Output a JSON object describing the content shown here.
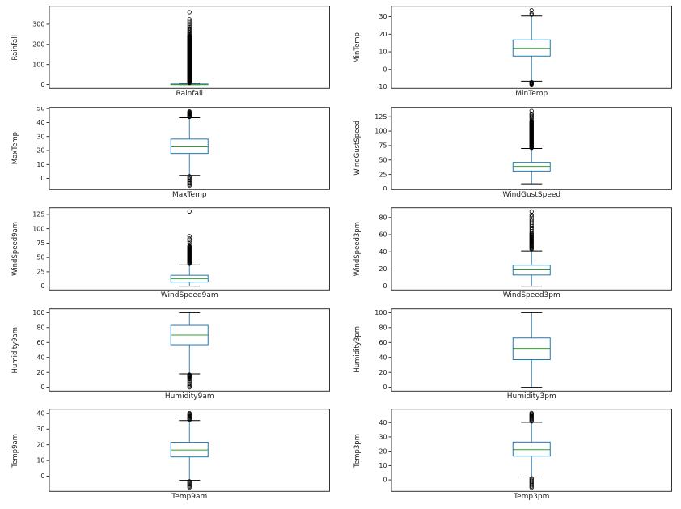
{
  "figure": {
    "description": "Box plots of weather variables, 5 rows x 2 columns"
  },
  "style": {
    "box_color": "#1f77b4",
    "median_color": "#2ca02c",
    "whisker_color": "#1f77b4",
    "cap_color": "#000000",
    "outlier_color": "#000000",
    "frame_color": "#000000",
    "text_color": "#1a1a1a"
  },
  "chart_data": [
    {
      "type": "box",
      "name": "Rainfall",
      "xlabel": "Rainfall",
      "ylabel": "Rainfall",
      "grid": false,
      "ylim": [
        -18.5,
        389.0
      ],
      "yticks": [
        0,
        100,
        200,
        300
      ],
      "stats": {
        "whisker_low": 0,
        "q1": 0,
        "median": 0.5,
        "q3": 3,
        "whisker_high": 7
      },
      "outlier_bands": [
        {
          "from": 8,
          "to": 245,
          "count": 140
        }
      ],
      "outliers": [
        250,
        255,
        260,
        266,
        272,
        278,
        285,
        292,
        300,
        308,
        316,
        325,
        360
      ]
    },
    {
      "type": "box",
      "name": "MinTemp",
      "xlabel": "MinTemp",
      "ylabel": "MinTemp",
      "grid": false,
      "ylim": [
        -10.8,
        35.9
      ],
      "yticks": [
        -10,
        0,
        10,
        20,
        30
      ],
      "stats": {
        "whisker_low": -6.7,
        "q1": 7.6,
        "median": 12,
        "q3": 16.8,
        "whisker_high": 30.4
      },
      "outlier_bands": [
        {
          "from": -8.6,
          "to": -7.2,
          "count": 6
        }
      ],
      "outliers": [
        31.1,
        31.8,
        33.6
      ]
    },
    {
      "type": "box",
      "name": "MaxTemp",
      "xlabel": "MaxTemp",
      "ylabel": "MaxTemp",
      "grid": false,
      "ylim": [
        -7.9,
        50.8
      ],
      "yticks": [
        0,
        10,
        20,
        30,
        40,
        50
      ],
      "stats": {
        "whisker_low": 2.2,
        "q1": 17.9,
        "median": 22.6,
        "q3": 28.2,
        "whisker_high": 43.4
      },
      "outlier_bands": [
        {
          "from": 44,
          "to": 48,
          "count": 10
        },
        {
          "from": -5.2,
          "to": 1.6,
          "count": 9
        }
      ],
      "outliers": []
    },
    {
      "type": "box",
      "name": "WindGustSpeed",
      "xlabel": "WindGustSpeed",
      "ylabel": "WindGustSpeed",
      "grid": false,
      "ylim": [
        -1.0,
        141.0
      ],
      "yticks": [
        0,
        25,
        50,
        75,
        100,
        125
      ],
      "stats": {
        "whisker_low": 9,
        "q1": 31,
        "median": 39,
        "q3": 46,
        "whisker_high": 70
      },
      "outlier_bands": [
        {
          "from": 71,
          "to": 117,
          "count": 55
        }
      ],
      "outliers": [
        119,
        122,
        124,
        126,
        128,
        130,
        135
      ]
    },
    {
      "type": "box",
      "name": "WindSpeed9am",
      "xlabel": "WindSpeed9am",
      "ylabel": "WindSpeed9am",
      "grid": false,
      "ylim": [
        -6.5,
        136.5
      ],
      "yticks": [
        0,
        25,
        50,
        75,
        100,
        125
      ],
      "stats": {
        "whisker_low": 0,
        "q1": 7,
        "median": 13,
        "q3": 19,
        "whisker_high": 37
      },
      "outlier_bands": [
        {
          "from": 39,
          "to": 70,
          "count": 34
        }
      ],
      "outliers": [
        74,
        78,
        81,
        83,
        87,
        130
      ]
    },
    {
      "type": "box",
      "name": "WindSpeed3pm",
      "xlabel": "WindSpeed3pm",
      "ylabel": "WindSpeed3pm",
      "grid": false,
      "ylim": [
        -4.4,
        91.4
      ],
      "yticks": [
        0,
        20,
        40,
        60,
        80
      ],
      "stats": {
        "whisker_low": 0,
        "q1": 13,
        "median": 19,
        "q3": 24.4,
        "whisker_high": 41
      },
      "outlier_bands": [
        {
          "from": 43,
          "to": 62,
          "count": 22
        }
      ],
      "outliers": [
        64,
        66,
        68,
        70,
        72,
        74,
        76,
        78,
        81,
        83,
        87
      ]
    },
    {
      "type": "box",
      "name": "Humidity9am",
      "xlabel": "Humidity9am",
      "ylabel": "Humidity9am",
      "grid": false,
      "ylim": [
        -5,
        105
      ],
      "yticks": [
        0,
        20,
        40,
        60,
        80,
        100
      ],
      "stats": {
        "whisker_low": 18,
        "q1": 57,
        "median": 70,
        "q3": 83,
        "whisker_high": 100
      },
      "outlier_bands": [
        {
          "from": 13.5,
          "to": 17,
          "count": 6
        }
      ],
      "outliers": [
        0,
        1.5,
        3,
        5,
        7,
        9,
        11,
        12.5
      ]
    },
    {
      "type": "box",
      "name": "Humidity3pm",
      "xlabel": "Humidity3pm",
      "ylabel": "Humidity3pm",
      "grid": false,
      "ylim": [
        -5,
        105
      ],
      "yticks": [
        0,
        20,
        40,
        60,
        80,
        100
      ],
      "stats": {
        "whisker_low": 0,
        "q1": 37,
        "median": 52,
        "q3": 66,
        "whisker_high": 100
      },
      "outlier_bands": [],
      "outliers": []
    },
    {
      "type": "box",
      "name": "Temp9am",
      "xlabel": "Temp9am",
      "ylabel": "Temp9am",
      "grid": false,
      "ylim": [
        -9.6,
        42.6
      ],
      "yticks": [
        0,
        10,
        20,
        30,
        40
      ],
      "stats": {
        "whisker_low": -2.6,
        "q1": 12.3,
        "median": 16.7,
        "q3": 21.6,
        "whisker_high": 35.4
      },
      "outlier_bands": [
        {
          "from": 35.8,
          "to": 40.2,
          "count": 10
        },
        {
          "from": -7.2,
          "to": -3.2,
          "count": 7
        }
      ],
      "outliers": []
    },
    {
      "type": "box",
      "name": "Temp3pm",
      "xlabel": "Temp3pm",
      "ylabel": "Temp3pm",
      "grid": false,
      "ylim": [
        -8.0,
        49.3
      ],
      "yticks": [
        0,
        10,
        20,
        30,
        40
      ],
      "stats": {
        "whisker_low": 2,
        "q1": 16.6,
        "median": 21.1,
        "q3": 26.4,
        "whisker_high": 40.2
      },
      "outlier_bands": [
        {
          "from": 40.8,
          "to": 46.7,
          "count": 11
        },
        {
          "from": -5.4,
          "to": 1.2,
          "count": 9
        }
      ],
      "outliers": []
    }
  ]
}
